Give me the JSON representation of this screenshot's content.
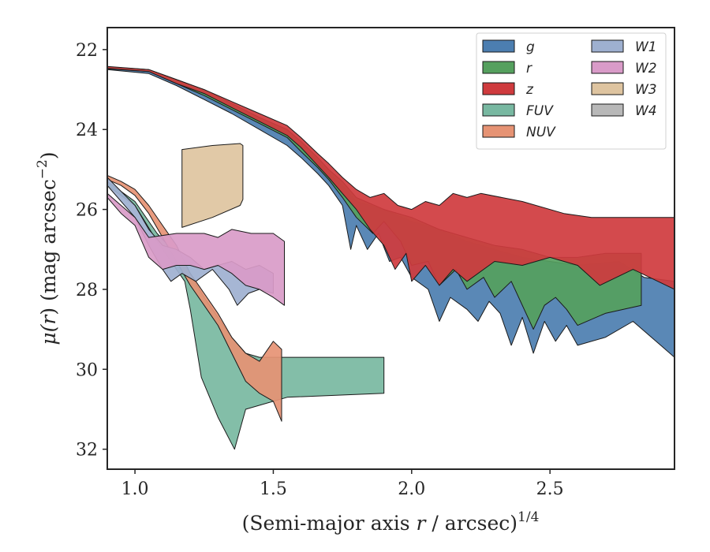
{
  "chart_data": {
    "type": "area",
    "x_label_main": "(Semi-major axis ",
    "x_label_var": "r",
    "x_label_unit": " / arcsec)",
    "x_label_exp": "1/4",
    "y_label_mu": "μ(",
    "y_label_var": "r",
    "y_label_unit": ") (mag arcsec",
    "y_label_exp": "−2",
    "y_label_close": ")",
    "xlim": [
      0.9,
      2.95
    ],
    "ylim": [
      32.5,
      21.45
    ],
    "y_inverted": true,
    "x_ticks": [
      1.0,
      1.5,
      2.0,
      2.5
    ],
    "x_tick_labels": [
      "1.0",
      "1.5",
      "2.0",
      "2.5"
    ],
    "y_ticks": [
      22,
      24,
      26,
      28,
      30,
      32
    ],
    "y_tick_labels": [
      "22",
      "24",
      "26",
      "28",
      "30",
      "32"
    ],
    "legend_position": "top-right",
    "legend_columns": 2,
    "series": [
      {
        "name": "g",
        "color": "#4c7eb0",
        "upper": [
          [
            0.9,
            22.45
          ],
          [
            1.05,
            22.55
          ],
          [
            1.15,
            22.8
          ],
          [
            1.25,
            23.1
          ],
          [
            1.35,
            23.45
          ],
          [
            1.45,
            23.75
          ],
          [
            1.55,
            24.1
          ],
          [
            1.6,
            24.4
          ],
          [
            1.66,
            24.8
          ],
          [
            1.7,
            25.1
          ],
          [
            1.75,
            25.4
          ],
          [
            1.8,
            25.8
          ],
          [
            1.85,
            25.9
          ],
          [
            1.9,
            26.0
          ],
          [
            2.0,
            26.3
          ],
          [
            2.1,
            26.5
          ],
          [
            2.2,
            26.8
          ],
          [
            2.3,
            27.0
          ],
          [
            2.4,
            27.2
          ],
          [
            2.5,
            27.3
          ],
          [
            2.6,
            27.4
          ],
          [
            2.75,
            27.3
          ],
          [
            2.84,
            27.7
          ],
          [
            2.95,
            27.8
          ]
        ],
        "lower": [
          [
            0.9,
            22.5
          ],
          [
            1.05,
            22.6
          ],
          [
            1.15,
            22.9
          ],
          [
            1.25,
            23.25
          ],
          [
            1.35,
            23.6
          ],
          [
            1.45,
            24.0
          ],
          [
            1.55,
            24.4
          ],
          [
            1.6,
            24.7
          ],
          [
            1.66,
            25.1
          ],
          [
            1.7,
            25.4
          ],
          [
            1.75,
            25.9
          ],
          [
            1.78,
            27.0
          ],
          [
            1.8,
            26.4
          ],
          [
            1.84,
            27.0
          ],
          [
            1.88,
            26.6
          ],
          [
            1.92,
            27.3
          ],
          [
            1.96,
            27.2
          ],
          [
            2.0,
            27.7
          ],
          [
            2.06,
            28.0
          ],
          [
            2.1,
            28.8
          ],
          [
            2.14,
            28.2
          ],
          [
            2.2,
            28.5
          ],
          [
            2.24,
            28.8
          ],
          [
            2.28,
            28.3
          ],
          [
            2.32,
            28.6
          ],
          [
            2.36,
            29.4
          ],
          [
            2.4,
            28.7
          ],
          [
            2.44,
            29.6
          ],
          [
            2.48,
            28.8
          ],
          [
            2.52,
            29.3
          ],
          [
            2.56,
            28.9
          ],
          [
            2.6,
            29.4
          ],
          [
            2.7,
            29.2
          ],
          [
            2.8,
            28.8
          ],
          [
            2.9,
            29.4
          ],
          [
            2.95,
            29.7
          ]
        ]
      },
      {
        "name": "r",
        "color": "#55a05e",
        "upper": [
          [
            0.9,
            22.43
          ],
          [
            1.05,
            22.5
          ],
          [
            1.15,
            22.75
          ],
          [
            1.25,
            23.0
          ],
          [
            1.35,
            23.35
          ],
          [
            1.45,
            23.7
          ],
          [
            1.55,
            24.0
          ],
          [
            1.6,
            24.3
          ],
          [
            1.66,
            24.7
          ],
          [
            1.7,
            25.0
          ],
          [
            1.75,
            25.3
          ],
          [
            1.8,
            25.7
          ],
          [
            1.9,
            26.0
          ],
          [
            2.0,
            26.2
          ],
          [
            2.1,
            26.5
          ],
          [
            2.2,
            26.7
          ],
          [
            2.3,
            26.9
          ],
          [
            2.4,
            27.0
          ],
          [
            2.5,
            27.2
          ],
          [
            2.6,
            27.2
          ],
          [
            2.7,
            27.1
          ],
          [
            2.83,
            27.1
          ]
        ],
        "lower": [
          [
            0.9,
            22.48
          ],
          [
            1.05,
            22.55
          ],
          [
            1.15,
            22.85
          ],
          [
            1.25,
            23.15
          ],
          [
            1.35,
            23.5
          ],
          [
            1.45,
            23.85
          ],
          [
            1.55,
            24.2
          ],
          [
            1.6,
            24.55
          ],
          [
            1.66,
            24.95
          ],
          [
            1.7,
            25.25
          ],
          [
            1.75,
            25.7
          ],
          [
            1.8,
            26.2
          ],
          [
            1.86,
            26.6
          ],
          [
            1.9,
            26.3
          ],
          [
            1.96,
            26.8
          ],
          [
            2.0,
            27.4
          ],
          [
            2.06,
            27.3
          ],
          [
            2.1,
            27.9
          ],
          [
            2.16,
            27.5
          ],
          [
            2.2,
            28.0
          ],
          [
            2.26,
            27.7
          ],
          [
            2.3,
            28.2
          ],
          [
            2.36,
            27.8
          ],
          [
            2.4,
            28.4
          ],
          [
            2.44,
            29.0
          ],
          [
            2.48,
            28.4
          ],
          [
            2.52,
            28.2
          ],
          [
            2.56,
            28.5
          ],
          [
            2.6,
            28.9
          ],
          [
            2.7,
            28.6
          ],
          [
            2.83,
            28.4
          ]
        ]
      },
      {
        "name": "z",
        "color": "#cf3b3e",
        "upper": [
          [
            0.9,
            22.42
          ],
          [
            1.05,
            22.5
          ],
          [
            1.15,
            22.75
          ],
          [
            1.25,
            23.0
          ],
          [
            1.35,
            23.3
          ],
          [
            1.45,
            23.6
          ],
          [
            1.55,
            23.9
          ],
          [
            1.6,
            24.2
          ],
          [
            1.66,
            24.6
          ],
          [
            1.7,
            24.85
          ],
          [
            1.75,
            25.2
          ],
          [
            1.8,
            25.5
          ],
          [
            1.85,
            25.7
          ],
          [
            1.9,
            25.6
          ],
          [
            1.95,
            25.9
          ],
          [
            2.0,
            26.0
          ],
          [
            2.05,
            25.8
          ],
          [
            2.1,
            25.9
          ],
          [
            2.15,
            25.6
          ],
          [
            2.2,
            25.7
          ],
          [
            2.25,
            25.6
          ],
          [
            2.4,
            25.8
          ],
          [
            2.55,
            26.1
          ],
          [
            2.65,
            26.2
          ],
          [
            2.95,
            26.2
          ]
        ],
        "lower": [
          [
            0.9,
            22.47
          ],
          [
            1.05,
            22.55
          ],
          [
            1.15,
            22.85
          ],
          [
            1.25,
            23.1
          ],
          [
            1.35,
            23.45
          ],
          [
            1.45,
            23.8
          ],
          [
            1.55,
            24.15
          ],
          [
            1.6,
            24.45
          ],
          [
            1.66,
            24.9
          ],
          [
            1.7,
            25.2
          ],
          [
            1.75,
            25.6
          ],
          [
            1.8,
            26.0
          ],
          [
            1.85,
            26.5
          ],
          [
            1.9,
            26.9
          ],
          [
            1.94,
            27.5
          ],
          [
            1.98,
            27.1
          ],
          [
            2.0,
            27.8
          ],
          [
            2.05,
            27.4
          ],
          [
            2.1,
            27.9
          ],
          [
            2.15,
            27.5
          ],
          [
            2.2,
            27.8
          ],
          [
            2.3,
            27.3
          ],
          [
            2.4,
            27.4
          ],
          [
            2.5,
            27.2
          ],
          [
            2.6,
            27.4
          ],
          [
            2.68,
            27.9
          ],
          [
            2.8,
            27.5
          ],
          [
            2.95,
            28.0
          ]
        ]
      },
      {
        "name": "FUV",
        "color": "#78b8a1",
        "upper": [
          [
            0.9,
            25.3
          ],
          [
            1.0,
            25.8
          ],
          [
            1.08,
            26.6
          ],
          [
            1.12,
            26.9
          ],
          [
            1.18,
            27.4
          ],
          [
            1.25,
            28.2
          ],
          [
            1.3,
            28.7
          ],
          [
            1.35,
            29.2
          ],
          [
            1.4,
            29.6
          ],
          [
            1.45,
            29.7
          ],
          [
            1.55,
            29.7
          ],
          [
            1.9,
            29.7
          ]
        ],
        "lower": [
          [
            0.9,
            25.4
          ],
          [
            1.0,
            25.9
          ],
          [
            1.08,
            26.8
          ],
          [
            1.12,
            27.2
          ],
          [
            1.18,
            27.8
          ],
          [
            1.2,
            28.5
          ],
          [
            1.24,
            30.2
          ],
          [
            1.3,
            31.2
          ],
          [
            1.36,
            32.0
          ],
          [
            1.4,
            31.0
          ],
          [
            1.55,
            30.7
          ],
          [
            1.9,
            30.6
          ]
        ]
      },
      {
        "name": "NUV",
        "color": "#e69374",
        "upper": [
          [
            0.9,
            25.15
          ],
          [
            0.95,
            25.3
          ],
          [
            1.0,
            25.5
          ],
          [
            1.05,
            25.9
          ],
          [
            1.1,
            26.4
          ],
          [
            1.15,
            26.9
          ],
          [
            1.2,
            27.6
          ],
          [
            1.25,
            28.1
          ],
          [
            1.3,
            28.6
          ],
          [
            1.35,
            29.2
          ],
          [
            1.4,
            29.6
          ],
          [
            1.45,
            29.8
          ],
          [
            1.5,
            29.3
          ],
          [
            1.53,
            29.5
          ]
        ],
        "lower": [
          [
            0.9,
            25.25
          ],
          [
            0.95,
            25.4
          ],
          [
            1.0,
            25.65
          ],
          [
            1.05,
            26.1
          ],
          [
            1.1,
            26.7
          ],
          [
            1.15,
            27.3
          ],
          [
            1.2,
            27.9
          ],
          [
            1.25,
            28.4
          ],
          [
            1.3,
            28.9
          ],
          [
            1.35,
            29.6
          ],
          [
            1.4,
            30.3
          ],
          [
            1.45,
            30.6
          ],
          [
            1.5,
            30.8
          ],
          [
            1.53,
            31.3
          ]
        ]
      },
      {
        "name": "W1",
        "color": "#9eb0d0",
        "upper": [
          [
            0.9,
            25.2
          ],
          [
            1.0,
            25.9
          ],
          [
            1.05,
            26.5
          ],
          [
            1.1,
            26.9
          ],
          [
            1.15,
            27.0
          ],
          [
            1.2,
            27.2
          ],
          [
            1.25,
            27.5
          ],
          [
            1.3,
            27.4
          ],
          [
            1.35,
            27.3
          ],
          [
            1.4,
            27.5
          ],
          [
            1.45,
            27.4
          ],
          [
            1.5,
            27.6
          ]
        ],
        "lower": [
          [
            0.9,
            25.4
          ],
          [
            1.0,
            26.2
          ],
          [
            1.05,
            26.9
          ],
          [
            1.1,
            27.5
          ],
          [
            1.13,
            27.8
          ],
          [
            1.17,
            27.6
          ],
          [
            1.22,
            27.8
          ],
          [
            1.28,
            27.5
          ],
          [
            1.34,
            28.0
          ],
          [
            1.37,
            28.4
          ],
          [
            1.41,
            28.1
          ],
          [
            1.45,
            28.0
          ],
          [
            1.5,
            28.1
          ]
        ]
      },
      {
        "name": "W2",
        "color": "#d99bc8",
        "upper": [
          [
            0.9,
            25.6
          ],
          [
            0.95,
            25.9
          ],
          [
            1.0,
            26.2
          ],
          [
            1.05,
            26.7
          ],
          [
            1.15,
            26.6
          ],
          [
            1.25,
            26.6
          ],
          [
            1.3,
            26.7
          ],
          [
            1.35,
            26.5
          ],
          [
            1.42,
            26.6
          ],
          [
            1.5,
            26.6
          ],
          [
            1.54,
            26.8
          ]
        ],
        "lower": [
          [
            0.9,
            25.7
          ],
          [
            0.95,
            26.1
          ],
          [
            1.0,
            26.4
          ],
          [
            1.05,
            27.2
          ],
          [
            1.1,
            27.5
          ],
          [
            1.15,
            27.4
          ],
          [
            1.2,
            27.4
          ],
          [
            1.25,
            27.5
          ],
          [
            1.3,
            27.4
          ],
          [
            1.35,
            27.6
          ],
          [
            1.4,
            27.9
          ],
          [
            1.45,
            28.0
          ],
          [
            1.5,
            28.2
          ],
          [
            1.54,
            28.4
          ]
        ]
      },
      {
        "name": "W3",
        "color": "#dec4a0",
        "upper": [
          [
            1.17,
            24.5
          ],
          [
            1.28,
            24.4
          ],
          [
            1.38,
            24.35
          ],
          [
            1.39,
            24.4
          ]
        ],
        "lower": [
          [
            1.17,
            26.45
          ],
          [
            1.28,
            26.2
          ],
          [
            1.38,
            25.9
          ],
          [
            1.39,
            25.75
          ]
        ]
      },
      {
        "name": "W4",
        "color": "#b8b8b8",
        "upper": [],
        "lower": []
      }
    ]
  }
}
